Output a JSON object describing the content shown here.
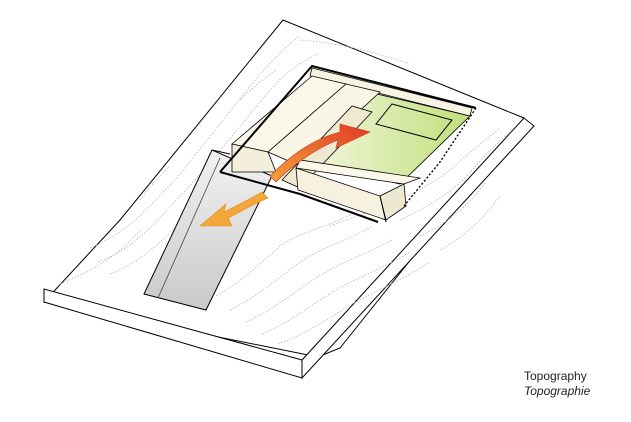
{
  "caption": {
    "title": "Topography",
    "subtitle": "Topographie"
  },
  "colors": {
    "terrain_fill": "#ffffff",
    "outline": "#000000",
    "contour": "#b8b8b8",
    "channel_fill": "#d9d9d9",
    "building_fill": "#fbf8ea",
    "courtyard_green": "#c9e58a",
    "arrow_orange": "#f3a63a",
    "arrow_red": "#e24a2a"
  },
  "icons": {
    "outflow_arrow": "arrow-down-left-icon",
    "flow_arrow": "curved-arrow-up-right-icon"
  }
}
